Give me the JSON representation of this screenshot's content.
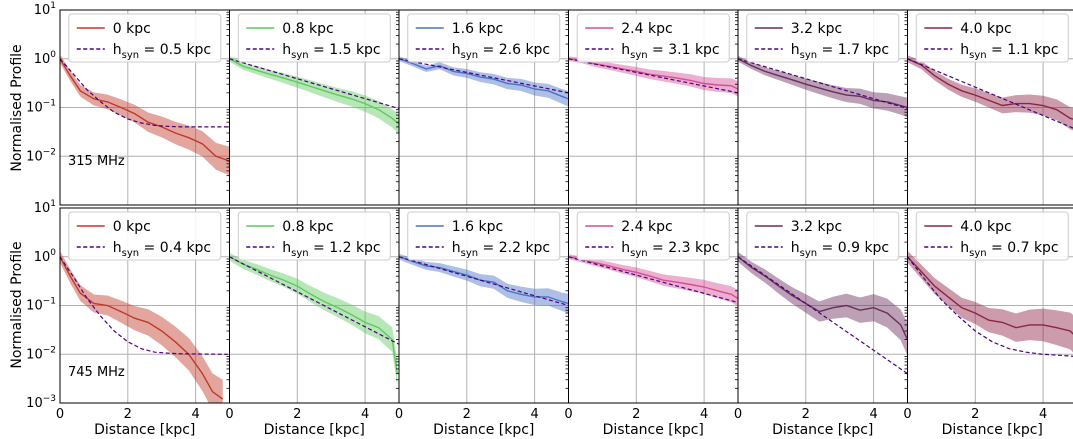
{
  "figure": {
    "ylabel": "Normalised Profile",
    "xlabel": "Distance [kpc]"
  },
  "chart_data": [
    {
      "type": "line",
      "row": 0,
      "col": 0,
      "frequency": "315 MHz",
      "legend_position": "top-center",
      "series": [
        {
          "name": "0 kpc",
          "color": "#c0392b",
          "x": [
            0,
            0.3,
            0.6,
            1.0,
            1.4,
            1.8,
            2.2,
            2.6,
            3.0,
            3.4,
            3.8,
            4.2,
            4.6,
            5.0
          ],
          "y": [
            1.0,
            0.45,
            0.22,
            0.15,
            0.13,
            0.1,
            0.075,
            0.05,
            0.04,
            0.03,
            0.024,
            0.018,
            0.01,
            0.008
          ],
          "band": 0.22
        },
        {
          "name": "h_syn = 0.5 kpc",
          "label_main": "h",
          "label_sub": "syn",
          "label_rest": " = 0.5 kpc",
          "color": "#4b0082",
          "dashed": true,
          "x": [
            0,
            0.4,
            0.8,
            1.2,
            1.6,
            2.0,
            2.4,
            2.8,
            3.2,
            3.6,
            4.0,
            5.0
          ],
          "y": [
            1.0,
            0.48,
            0.23,
            0.13,
            0.08,
            0.058,
            0.048,
            0.043,
            0.041,
            0.04,
            0.04,
            0.04
          ]
        }
      ],
      "xlim": [
        0,
        5
      ],
      "ylim": [
        0.001,
        10
      ],
      "yscale": "log"
    },
    {
      "type": "line",
      "row": 0,
      "col": 1,
      "legend_position": "top-center",
      "series": [
        {
          "name": "0.8 kpc",
          "color": "#5fc95f",
          "x": [
            0,
            0.4,
            0.8,
            1.2,
            1.6,
            2.0,
            2.4,
            2.8,
            3.2,
            3.6,
            4.0,
            4.4,
            4.8,
            5.0
          ],
          "y": [
            1.0,
            0.7,
            0.58,
            0.48,
            0.4,
            0.33,
            0.27,
            0.22,
            0.18,
            0.15,
            0.12,
            0.09,
            0.06,
            0.045
          ],
          "band": 0.15
        },
        {
          "name": "h_syn = 1.5 kpc",
          "label_main": "h",
          "label_sub": "syn",
          "label_rest": " = 1.5 kpc",
          "color": "#4b0082",
          "dashed": true,
          "x": [
            0,
            5
          ],
          "y": [
            1.0,
            0.095
          ]
        }
      ],
      "xlim": [
        0,
        5
      ],
      "ylim": [
        0.001,
        10
      ],
      "yscale": "log"
    },
    {
      "type": "line",
      "row": 0,
      "col": 2,
      "legend_position": "top-center",
      "series": [
        {
          "name": "1.6 kpc",
          "color": "#4a72c6",
          "x": [
            0,
            0.4,
            0.8,
            1.2,
            1.6,
            2.0,
            2.4,
            2.8,
            3.2,
            3.6,
            4.0,
            4.4,
            4.8,
            5.0
          ],
          "y": [
            1.0,
            0.8,
            0.62,
            0.72,
            0.55,
            0.5,
            0.42,
            0.38,
            0.31,
            0.29,
            0.24,
            0.22,
            0.17,
            0.15
          ],
          "band": 0.12
        },
        {
          "name": "h_syn = 2.6 kpc",
          "label_main": "h",
          "label_sub": "syn",
          "label_rest": " = 2.6 kpc",
          "color": "#4b0082",
          "dashed": true,
          "x": [
            0,
            5
          ],
          "y": [
            1.0,
            0.2
          ]
        }
      ],
      "xlim": [
        0,
        5
      ],
      "ylim": [
        0.001,
        10
      ],
      "yscale": "log"
    },
    {
      "type": "line",
      "row": 0,
      "col": 3,
      "legend_position": "top-center",
      "series": [
        {
          "name": "2.4 kpc",
          "color": "#d44e96",
          "x": [
            0,
            0.4,
            0.8,
            1.2,
            1.6,
            2.0,
            2.4,
            2.8,
            3.2,
            3.6,
            4.0,
            4.4,
            4.8,
            5.0
          ],
          "y": [
            1.0,
            0.92,
            0.78,
            0.7,
            0.62,
            0.55,
            0.48,
            0.44,
            0.4,
            0.36,
            0.31,
            0.29,
            0.28,
            0.24
          ],
          "band": 0.12
        },
        {
          "name": "h_syn = 3.1 kpc",
          "label_main": "h",
          "label_sub": "syn",
          "label_rest": " = 3.1 kpc",
          "color": "#4b0082",
          "dashed": true,
          "x": [
            0,
            5
          ],
          "y": [
            1.0,
            0.2
          ]
        }
      ],
      "xlim": [
        0,
        5
      ],
      "ylim": [
        0.001,
        10
      ],
      "yscale": "log"
    },
    {
      "type": "line",
      "row": 0,
      "col": 4,
      "legend_position": "top-center",
      "series": [
        {
          "name": "3.2 kpc",
          "color": "#6b2d5c",
          "x": [
            0,
            0.4,
            0.8,
            1.2,
            1.6,
            2.0,
            2.4,
            2.8,
            3.2,
            3.6,
            4.0,
            4.4,
            4.8,
            5.0
          ],
          "y": [
            1.0,
            0.72,
            0.55,
            0.45,
            0.37,
            0.3,
            0.25,
            0.21,
            0.18,
            0.17,
            0.14,
            0.13,
            0.11,
            0.1
          ],
          "band": 0.15
        },
        {
          "name": "h_syn = 1.7 kpc",
          "label_main": "h",
          "label_sub": "syn",
          "label_rest": " = 1.7 kpc",
          "color": "#4b0082",
          "dashed": true,
          "x": [
            0,
            5
          ],
          "y": [
            1.0,
            0.095
          ]
        }
      ],
      "xlim": [
        0,
        5
      ],
      "ylim": [
        0.001,
        10
      ],
      "yscale": "log"
    },
    {
      "type": "line",
      "row": 0,
      "col": 5,
      "legend_position": "top-center",
      "series": [
        {
          "name": "4.0 kpc",
          "color": "#8e2346",
          "x": [
            0,
            0.4,
            0.8,
            1.2,
            1.6,
            2.0,
            2.4,
            2.8,
            3.2,
            3.6,
            4.0,
            4.4,
            4.8,
            5.0
          ],
          "y": [
            1.0,
            0.75,
            0.45,
            0.3,
            0.22,
            0.18,
            0.14,
            0.11,
            0.12,
            0.12,
            0.11,
            0.09,
            0.06,
            0.055
          ],
          "band": 0.18
        },
        {
          "name": "h_syn = 1.1 kpc",
          "label_main": "h",
          "label_sub": "syn",
          "label_rest": " = 1.1 kpc",
          "color": "#4b0082",
          "dashed": true,
          "x": [
            0,
            5
          ],
          "y": [
            1.0,
            0.035
          ]
        }
      ],
      "xlim": [
        0,
        5
      ],
      "ylim": [
        0.001,
        10
      ],
      "yscale": "log"
    },
    {
      "type": "line",
      "row": 1,
      "col": 0,
      "frequency": "745 MHz",
      "legend_position": "top-center",
      "series": [
        {
          "name": "0 kpc",
          "color": "#c0392b",
          "x": [
            0,
            0.3,
            0.6,
            1.0,
            1.4,
            1.8,
            2.2,
            2.6,
            3.0,
            3.4,
            3.8,
            4.2,
            4.5,
            4.8
          ],
          "y": [
            1.0,
            0.4,
            0.18,
            0.11,
            0.1,
            0.075,
            0.055,
            0.045,
            0.03,
            0.018,
            0.01,
            0.004,
            0.0017,
            0.0012
          ],
          "band": 0.3
        },
        {
          "name": "h_syn = 0.4 kpc",
          "label_main": "h",
          "label_sub": "syn",
          "label_rest": " = 0.4 kpc",
          "color": "#4b0082",
          "dashed": true,
          "x": [
            0,
            0.4,
            0.8,
            1.2,
            1.6,
            2.0,
            2.4,
            2.8,
            3.2,
            3.6,
            4.0,
            5.0
          ],
          "y": [
            1.0,
            0.38,
            0.14,
            0.06,
            0.03,
            0.018,
            0.013,
            0.011,
            0.0105,
            0.0102,
            0.0101,
            0.01
          ]
        }
      ],
      "xlim": [
        0,
        5
      ],
      "ylim": [
        0.001,
        10
      ],
      "yscale": "log"
    },
    {
      "type": "line",
      "row": 1,
      "col": 1,
      "legend_position": "top-center",
      "series": [
        {
          "name": "0.8 kpc",
          "color": "#5fc95f",
          "x": [
            0,
            0.4,
            0.8,
            1.2,
            1.6,
            2.0,
            2.4,
            2.8,
            3.2,
            3.6,
            4.0,
            4.4,
            4.8,
            4.95
          ],
          "y": [
            1.0,
            0.7,
            0.55,
            0.42,
            0.33,
            0.25,
            0.17,
            0.12,
            0.09,
            0.065,
            0.045,
            0.035,
            0.02,
            0.004
          ],
          "band": 0.2
        },
        {
          "name": "h_syn = 1.2 kpc",
          "label_main": "h",
          "label_sub": "syn",
          "label_rest": " = 1.2 kpc",
          "color": "#4b0082",
          "dashed": true,
          "x": [
            0,
            5
          ],
          "y": [
            1.0,
            0.016
          ]
        }
      ],
      "xlim": [
        0,
        5
      ],
      "ylim": [
        0.001,
        10
      ],
      "yscale": "log"
    },
    {
      "type": "line",
      "row": 1,
      "col": 2,
      "legend_position": "top-center",
      "series": [
        {
          "name": "1.6 kpc",
          "color": "#4a72c6",
          "x": [
            0,
            0.4,
            0.8,
            1.2,
            1.6,
            2.0,
            2.4,
            2.8,
            3.2,
            3.6,
            4.0,
            4.4,
            4.8,
            5.0
          ],
          "y": [
            1.0,
            0.8,
            0.65,
            0.6,
            0.5,
            0.42,
            0.33,
            0.3,
            0.2,
            0.17,
            0.15,
            0.15,
            0.12,
            0.11
          ],
          "band": 0.15
        },
        {
          "name": "h_syn = 2.2 kpc",
          "label_main": "h",
          "label_sub": "syn",
          "label_rest": " = 2.2 kpc",
          "color": "#4b0082",
          "dashed": true,
          "x": [
            0,
            5
          ],
          "y": [
            1.0,
            0.1
          ]
        }
      ],
      "xlim": [
        0,
        5
      ],
      "ylim": [
        0.001,
        10
      ],
      "yscale": "log"
    },
    {
      "type": "line",
      "row": 1,
      "col": 3,
      "legend_position": "top-center",
      "series": [
        {
          "name": "2.4 kpc",
          "color": "#d44e96",
          "x": [
            0,
            0.4,
            0.8,
            1.2,
            1.6,
            2.0,
            2.4,
            2.8,
            3.2,
            3.6,
            4.0,
            4.4,
            4.8,
            5.0
          ],
          "y": [
            1.0,
            0.88,
            0.75,
            0.65,
            0.55,
            0.48,
            0.4,
            0.33,
            0.3,
            0.27,
            0.24,
            0.2,
            0.17,
            0.14
          ],
          "band": 0.13
        },
        {
          "name": "h_syn = 2.3 kpc",
          "label_main": "h",
          "label_sub": "syn",
          "label_rest": " = 2.3 kpc",
          "color": "#4b0082",
          "dashed": true,
          "x": [
            0,
            5
          ],
          "y": [
            1.0,
            0.115
          ]
        }
      ],
      "xlim": [
        0,
        5
      ],
      "ylim": [
        0.001,
        10
      ],
      "yscale": "log"
    },
    {
      "type": "line",
      "row": 1,
      "col": 4,
      "legend_position": "top-center",
      "series": [
        {
          "name": "3.2 kpc",
          "color": "#6b2d5c",
          "x": [
            0,
            0.4,
            0.8,
            1.2,
            1.6,
            2.0,
            2.4,
            2.8,
            3.2,
            3.6,
            4.0,
            4.4,
            4.8,
            5.0
          ],
          "y": [
            1.0,
            0.6,
            0.4,
            0.25,
            0.16,
            0.11,
            0.075,
            0.09,
            0.1,
            0.08,
            0.09,
            0.07,
            0.04,
            0.02
          ],
          "band": 0.25
        },
        {
          "name": "h_syn = 0.9 kpc",
          "label_main": "h",
          "label_sub": "syn",
          "label_rest": " = 0.9 kpc",
          "color": "#4b0082",
          "dashed": true,
          "x": [
            0,
            5
          ],
          "y": [
            1.0,
            0.004
          ]
        }
      ],
      "xlim": [
        0,
        5
      ],
      "ylim": [
        0.001,
        10
      ],
      "yscale": "log"
    },
    {
      "type": "line",
      "row": 1,
      "col": 5,
      "legend_position": "top-center",
      "series": [
        {
          "name": "4.0 kpc",
          "color": "#8e2346",
          "x": [
            0,
            0.4,
            0.8,
            1.2,
            1.6,
            2.0,
            2.4,
            2.8,
            3.2,
            3.6,
            4.0,
            4.4,
            4.8,
            5.0
          ],
          "y": [
            1.0,
            0.5,
            0.25,
            0.15,
            0.09,
            0.07,
            0.05,
            0.045,
            0.035,
            0.04,
            0.04,
            0.035,
            0.03,
            0.022
          ],
          "band": 0.3
        },
        {
          "name": "h_syn = 0.7 kpc",
          "label_main": "h",
          "label_sub": "syn",
          "label_rest": " = 0.7 kpc",
          "color": "#4b0082",
          "dashed": true,
          "x": [
            0,
            0.5,
            1.0,
            1.5,
            2.0,
            2.5,
            3.0,
            3.5,
            4.0,
            4.5,
            5.0
          ],
          "y": [
            1.0,
            0.35,
            0.13,
            0.06,
            0.03,
            0.018,
            0.013,
            0.011,
            0.01,
            0.0095,
            0.009
          ]
        }
      ],
      "xlim": [
        0,
        5
      ],
      "ylim": [
        0.001,
        10
      ],
      "yscale": "log"
    }
  ]
}
